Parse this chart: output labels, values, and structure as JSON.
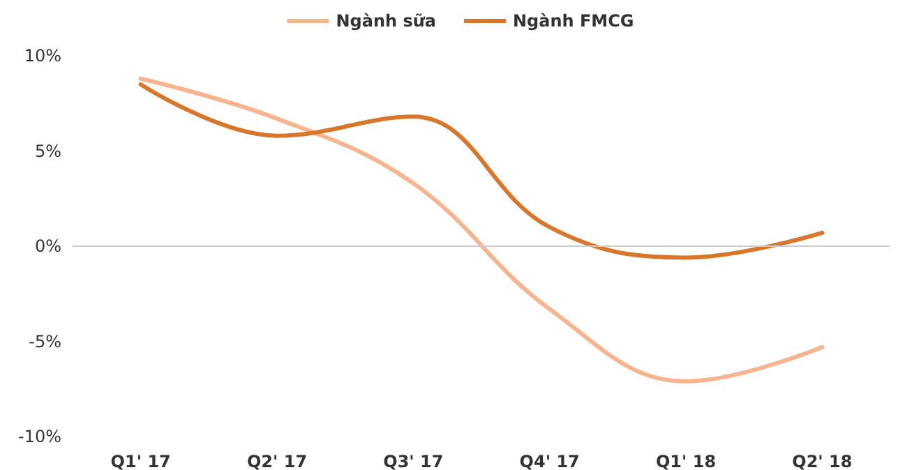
{
  "chart_data": {
    "type": "line",
    "categories": [
      "Q1' 17",
      "Q2' 17",
      "Q3' 17",
      "Q4' 17",
      "Q1' 18",
      "Q2' 18"
    ],
    "series": [
      {
        "name": "Ngành sữa",
        "color": "#f7b48e",
        "values": [
          8.8,
          6.7,
          3.3,
          -3.3,
          -7.1,
          -5.3
        ]
      },
      {
        "name": "Ngành FMCG",
        "color": "#d8772c",
        "values": [
          8.5,
          5.8,
          6.8,
          1.0,
          -0.6,
          0.7
        ]
      }
    ],
    "ylim": [
      -10,
      10
    ],
    "yticks": [
      {
        "value": -10,
        "label": "-10%"
      },
      {
        "value": -5,
        "label": "-5%"
      },
      {
        "value": 0,
        "label": "0%"
      },
      {
        "value": 5,
        "label": "5%"
      },
      {
        "value": 10,
        "label": "10%"
      }
    ],
    "ref_lines": [
      {
        "axis": "y",
        "value": 0,
        "color": "#cccccc"
      }
    ],
    "grid": false,
    "legend": "top",
    "marker": "none",
    "line_style": "solid"
  }
}
